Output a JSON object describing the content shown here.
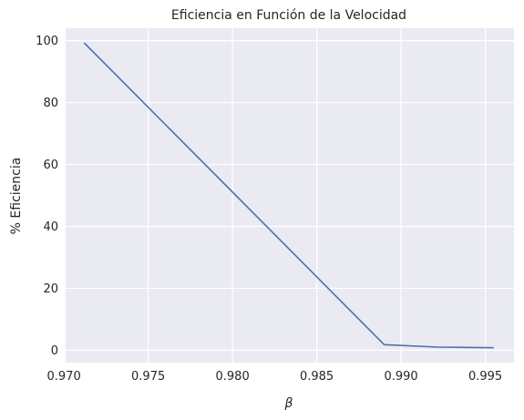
{
  "chart_data": {
    "type": "line",
    "title": "Eficiencia en Función de la Velocidad",
    "xlabel": "β",
    "ylabel": "% Eficiencia",
    "xlim": [
      0.9701,
      0.9967
    ],
    "ylim": [
      -4,
      104
    ],
    "xticks": [
      "0.970",
      "0.975",
      "0.980",
      "0.985",
      "0.990",
      "0.995"
    ],
    "yticks": [
      "0",
      "20",
      "40",
      "60",
      "80",
      "100"
    ],
    "grid": true,
    "series": [
      {
        "color": "#4c72b0",
        "x": [
          0.9712,
          0.989,
          0.9922,
          0.9955
        ],
        "y": [
          99.3,
          1.8,
          1.0,
          0.8
        ]
      }
    ],
    "colors": {
      "background": "#eaeaf2",
      "grid": "#ffffff",
      "line": "#4c72b0"
    }
  }
}
